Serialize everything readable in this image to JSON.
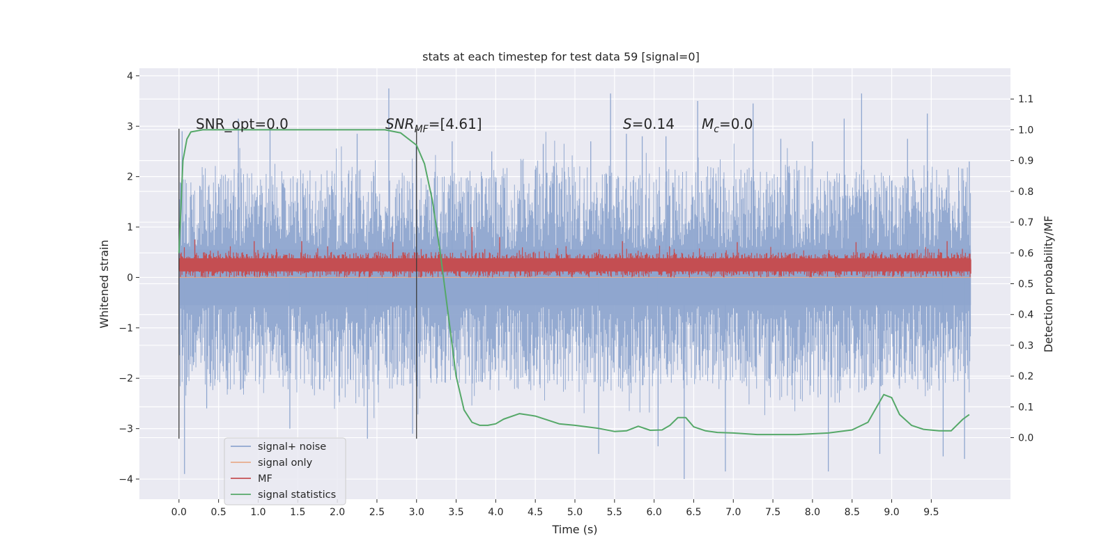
{
  "chart_data": {
    "type": "line",
    "title": "stats at each timestep for test data 59 [signal=0]",
    "xlabel": "Time (s)",
    "ylabel": "Whitened strain",
    "ylabel_right": "Detection probability/MF",
    "xlim": [
      -0.5,
      10.5
    ],
    "ylim": [
      -4.4,
      4.15
    ],
    "ylim_right": [
      -0.2,
      1.2
    ],
    "x_ticks": [
      0.0,
      0.5,
      1.0,
      1.5,
      2.0,
      2.5,
      3.0,
      3.5,
      4.0,
      4.5,
      5.0,
      5.5,
      6.0,
      6.5,
      7.0,
      7.5,
      8.0,
      8.5,
      9.0,
      9.5
    ],
    "x_tick_labels": [
      "0.0",
      "0.5",
      "1.0",
      "1.5",
      "2.0",
      "2.5",
      "3.0",
      "3.5",
      "4.0",
      "4.5",
      "5.0",
      "5.5",
      "6.0",
      "6.5",
      "7.0",
      "7.5",
      "8.0",
      "8.5",
      "9.0",
      "9.5"
    ],
    "y_ticks": [
      4,
      3,
      2,
      1,
      0,
      -1,
      -2,
      -3,
      -4
    ],
    "y_tick_labels": [
      "4",
      "3",
      "2",
      "1",
      "0",
      "−1",
      "−2",
      "−3",
      "−4"
    ],
    "y_right_ticks": [
      1.1,
      1.0,
      0.9,
      0.8,
      0.7,
      0.6,
      0.5,
      0.4,
      0.3,
      0.2,
      0.1,
      0.0
    ],
    "y_right_tick_labels": [
      "1.1",
      "1.0",
      "0.9",
      "0.8",
      "0.7",
      "0.6",
      "0.5",
      "0.4",
      "0.3",
      "0.2",
      "0.1",
      "0.0"
    ],
    "grid": true,
    "legend_position": "bottom-left",
    "annotations": {
      "snr_opt": "SNR_opt=0.0",
      "snr_mf_main": "SNR",
      "snr_mf_sub": "MF",
      "snr_mf_rest": "=[4.61]",
      "s_main": "S",
      "s_rest": "=0.14",
      "mc_main": "M",
      "mc_sub": "c",
      "mc_rest": "=0.0"
    },
    "vertical_markers": [
      0.0,
      3.0
    ],
    "vertical_marker_range": [
      -3.2,
      2.95
    ],
    "series": [
      {
        "name": "signal+ noise",
        "color": "#8fa6cf",
        "axis": "left",
        "style": "noise",
        "x_range": [
          0.0,
          10.0
        ],
        "envelope_upper": [
          2.3,
          2.1,
          2.2,
          2.0,
          2.4,
          2.1,
          2.2,
          2.3,
          2.1,
          2.2
        ],
        "envelope_lower": [
          -2.2,
          -2.3,
          -2.4,
          -2.1,
          -2.3,
          -2.3,
          -2.1,
          -2.5,
          -2.2,
          -2.3
        ],
        "peaks": [
          [
            0.04,
            2.9
          ],
          [
            0.07,
            -3.9
          ],
          [
            0.35,
            -2.6
          ],
          [
            0.75,
            3.15
          ],
          [
            1.15,
            2.95
          ],
          [
            1.4,
            -3.0
          ],
          [
            2.25,
            2.85
          ],
          [
            2.38,
            -3.2
          ],
          [
            2.65,
            3.75
          ],
          [
            2.95,
            -3.1
          ],
          [
            3.45,
            2.7
          ],
          [
            3.95,
            2.5
          ],
          [
            4.6,
            2.65
          ],
          [
            5.2,
            2.7
          ],
          [
            5.3,
            -3.5
          ],
          [
            5.45,
            3.65
          ],
          [
            5.65,
            2.85
          ],
          [
            5.85,
            2.8
          ],
          [
            6.05,
            -3.35
          ],
          [
            6.15,
            2.8
          ],
          [
            6.38,
            -4.0
          ],
          [
            6.55,
            3.5
          ],
          [
            6.9,
            -3.85
          ],
          [
            7.25,
            3.45
          ],
          [
            7.6,
            2.75
          ],
          [
            8.0,
            2.7
          ],
          [
            8.2,
            -3.85
          ],
          [
            8.4,
            3.15
          ],
          [
            8.62,
            3.65
          ],
          [
            8.85,
            -3.5
          ],
          [
            9.2,
            2.75
          ],
          [
            9.45,
            3.25
          ],
          [
            9.65,
            -3.55
          ],
          [
            9.92,
            -3.6
          ],
          [
            9.98,
            2.3
          ]
        ]
      },
      {
        "name": "signal only",
        "color": "#e8ac8c",
        "axis": "left",
        "style": "line",
        "x": [
          0.0,
          10.0
        ],
        "y": [
          0.0,
          0.0
        ]
      },
      {
        "name": "MF",
        "color": "#c44e52",
        "axis": "left",
        "style": "band",
        "x_range": [
          0.0,
          10.0
        ],
        "band": [
          0.0,
          0.5
        ],
        "spikes": [
          [
            0.2,
            0.75
          ],
          [
            0.95,
            0.72
          ],
          [
            1.55,
            0.72
          ],
          [
            2.7,
            0.7
          ],
          [
            3.7,
            1.0
          ],
          [
            4.05,
            0.8
          ],
          [
            5.6,
            0.72
          ],
          [
            7.05,
            0.7
          ],
          [
            8.55,
            0.7
          ],
          [
            9.7,
            0.72
          ]
        ]
      },
      {
        "name": "signal statistics",
        "color": "#55a868",
        "axis": "right",
        "style": "line",
        "x": [
          0.0,
          0.05,
          0.1,
          0.15,
          0.3,
          1.0,
          2.0,
          2.6,
          2.8,
          3.0,
          3.1,
          3.2,
          3.3,
          3.4,
          3.5,
          3.6,
          3.7,
          3.8,
          3.9,
          4.0,
          4.1,
          4.3,
          4.5,
          4.8,
          5.0,
          5.3,
          5.5,
          5.65,
          5.8,
          5.95,
          6.1,
          6.2,
          6.3,
          6.4,
          6.5,
          6.65,
          6.8,
          7.0,
          7.3,
          7.8,
          8.2,
          8.5,
          8.7,
          8.8,
          8.9,
          9.0,
          9.1,
          9.25,
          9.4,
          9.6,
          9.75,
          9.9,
          9.98
        ],
        "y": [
          0.6,
          0.9,
          0.97,
          0.993,
          1.0,
          1.0,
          1.0,
          1.0,
          0.99,
          0.95,
          0.89,
          0.77,
          0.6,
          0.4,
          0.2,
          0.09,
          0.05,
          0.04,
          0.04,
          0.045,
          0.06,
          0.078,
          0.07,
          0.045,
          0.04,
          0.03,
          0.02,
          0.022,
          0.037,
          0.024,
          0.025,
          0.04,
          0.065,
          0.065,
          0.035,
          0.022,
          0.017,
          0.015,
          0.01,
          0.01,
          0.015,
          0.025,
          0.05,
          0.095,
          0.14,
          0.13,
          0.075,
          0.04,
          0.027,
          0.022,
          0.022,
          0.06,
          0.075
        ]
      }
    ]
  },
  "legend": {
    "items": [
      {
        "label": "signal+ noise",
        "color": "#8fa6cf"
      },
      {
        "label": "signal only",
        "color": "#e8ac8c"
      },
      {
        "label": "MF",
        "color": "#c44e52"
      },
      {
        "label": "signal statistics",
        "color": "#55a868"
      }
    ]
  },
  "colors": {
    "plot_background": "#eaeaf2",
    "grid": "#ffffff",
    "marker": "#3b3b3b",
    "text": "#262626"
  }
}
